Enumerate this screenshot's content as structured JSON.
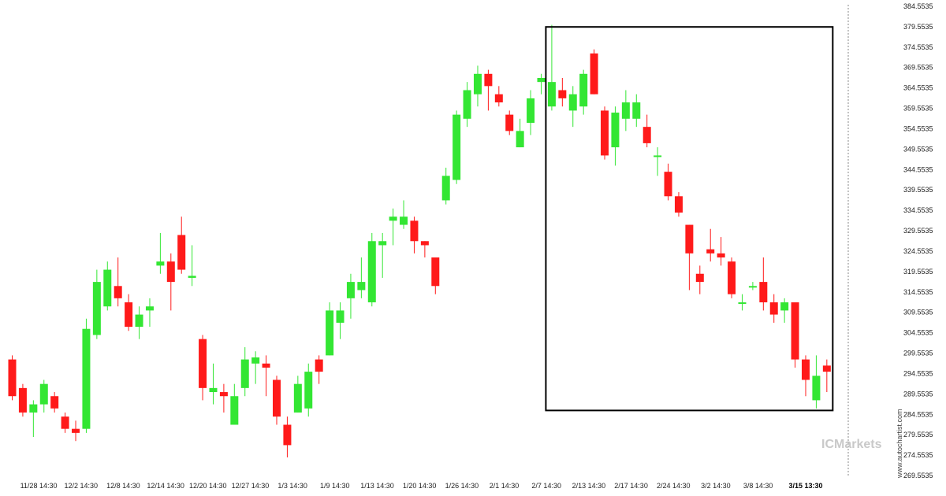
{
  "chart_data": {
    "type": "candlestick",
    "y_range": [
      269.5535,
      384.5535
    ],
    "y_ticks": [
      "384.5535",
      "379.5535",
      "374.5535",
      "369.5535",
      "364.5535",
      "359.5535",
      "354.5535",
      "349.5535",
      "344.5535",
      "339.5535",
      "334.5535",
      "329.5535",
      "324.5535",
      "319.5535",
      "314.5535",
      "309.5535",
      "304.5535",
      "299.5535",
      "294.5535",
      "289.5535",
      "284.5535",
      "279.5535",
      "274.5535",
      "269.5535"
    ],
    "x_ticks": [
      {
        "label": "11/28 14:30",
        "index": 2.5
      },
      {
        "label": "12/2 14:30",
        "index": 6.5
      },
      {
        "label": "12/8 14:30",
        "index": 10.5
      },
      {
        "label": "12/14 14:30",
        "index": 14.5
      },
      {
        "label": "12/20 14:30",
        "index": 18.5
      },
      {
        "label": "12/27 14:30",
        "index": 22.5
      },
      {
        "label": "1/3 14:30",
        "index": 26.5
      },
      {
        "label": "1/9 14:30",
        "index": 30.5
      },
      {
        "label": "1/13 14:30",
        "index": 34.5
      },
      {
        "label": "1/20 14:30",
        "index": 38.5
      },
      {
        "label": "1/26 14:30",
        "index": 42.5
      },
      {
        "label": "2/1 14:30",
        "index": 46.5
      },
      {
        "label": "2/7 14:30",
        "index": 50.5
      },
      {
        "label": "2/13 14:30",
        "index": 54.5
      },
      {
        "label": "2/17 14:30",
        "index": 58.5
      },
      {
        "label": "2/24 14:30",
        "index": 62.5
      },
      {
        "label": "3/2 14:30",
        "index": 66.5
      },
      {
        "label": "3/8 14:30",
        "index": 70.5
      },
      {
        "label": "3/15 13:30",
        "index": 75,
        "bold": true
      }
    ],
    "candles": [
      [
        298,
        289,
        299,
        288
      ],
      [
        291,
        285,
        292,
        284
      ],
      [
        285,
        287,
        288,
        279
      ],
      [
        287,
        292,
        293,
        285
      ],
      [
        289,
        286,
        290,
        285
      ],
      [
        284,
        281,
        285,
        280
      ],
      [
        281,
        280,
        283,
        278
      ],
      [
        281,
        305.5,
        308,
        280
      ],
      [
        304,
        317,
        320,
        303
      ],
      [
        311,
        320,
        322,
        310
      ],
      [
        316,
        313,
        323,
        311
      ],
      [
        312,
        306,
        314,
        305
      ],
      [
        306,
        309,
        311,
        303
      ],
      [
        310,
        311,
        313,
        306
      ],
      [
        321,
        322,
        329,
        319
      ],
      [
        322,
        317,
        324,
        310
      ],
      [
        328.5,
        320,
        333,
        319
      ],
      [
        318,
        318.5,
        326,
        316
      ],
      [
        303,
        291,
        304,
        288
      ],
      [
        290,
        291,
        297,
        287
      ],
      [
        290,
        289,
        292,
        285
      ],
      [
        282,
        289,
        292,
        282
      ],
      [
        291,
        298,
        301,
        289
      ],
      [
        297,
        298.5,
        300,
        292
      ],
      [
        297,
        296,
        299,
        289
      ],
      [
        293,
        284,
        294,
        282
      ],
      [
        282,
        277,
        284,
        274
      ],
      [
        285,
        292,
        294,
        285
      ],
      [
        286,
        295,
        297,
        284
      ],
      [
        298,
        295,
        299,
        292
      ],
      [
        299,
        310,
        312,
        299
      ],
      [
        307,
        310,
        312,
        303
      ],
      [
        313,
        317,
        319,
        308
      ],
      [
        315,
        317,
        323,
        313
      ],
      [
        312,
        327,
        329,
        311
      ],
      [
        326,
        327,
        329,
        318
      ],
      [
        332,
        333,
        335,
        326
      ],
      [
        331,
        333,
        337,
        330
      ],
      [
        332,
        327,
        333,
        324
      ],
      [
        327,
        326,
        327,
        323
      ],
      [
        323,
        316,
        323,
        314
      ],
      [
        337,
        343,
        345,
        336
      ],
      [
        342,
        358,
        359,
        341
      ],
      [
        357,
        364,
        366,
        355
      ],
      [
        363,
        368,
        370,
        360
      ],
      [
        368,
        365,
        369,
        359
      ],
      [
        363,
        361,
        365,
        360
      ],
      [
        358,
        354,
        359,
        353
      ],
      [
        350,
        354,
        357,
        350
      ],
      [
        356,
        362,
        364,
        353
      ],
      [
        366,
        367,
        368,
        363
      ],
      [
        360,
        366,
        380,
        359
      ],
      [
        364,
        362,
        367,
        360
      ],
      [
        359,
        363,
        365,
        355
      ],
      [
        360,
        368,
        369,
        358
      ],
      [
        373,
        363,
        374,
        363
      ],
      [
        359,
        348,
        360,
        347
      ],
      [
        350,
        358.5,
        360,
        345.5
      ],
      [
        357,
        361,
        364,
        354
      ],
      [
        357,
        361,
        363,
        355
      ],
      [
        355,
        351,
        358,
        350
      ],
      [
        348,
        348,
        350,
        343
      ],
      [
        344,
        338,
        346,
        337
      ],
      [
        338,
        334,
        339,
        333
      ],
      [
        331,
        324,
        331,
        315
      ],
      [
        319,
        317,
        321,
        314
      ],
      [
        325,
        324,
        330,
        322
      ],
      [
        324,
        323,
        328,
        321
      ],
      [
        322,
        314,
        323,
        313
      ],
      [
        312,
        312,
        314,
        310
      ],
      [
        316,
        316,
        317,
        315
      ],
      [
        317,
        312,
        323,
        310
      ],
      [
        312,
        309,
        314,
        307
      ],
      [
        310,
        312,
        313,
        307
      ],
      [
        312,
        298,
        312,
        296
      ],
      [
        298,
        293,
        299,
        289
      ],
      [
        288,
        294,
        299,
        286
      ],
      [
        296.5,
        295,
        298,
        290
      ]
    ],
    "annotation_box": {
      "start_index": 51,
      "end_index": 77,
      "top": 379.5,
      "bottom": 285.5
    },
    "bull_color": "#33e633",
    "bear_color": "#ff1a1a"
  },
  "watermark": {
    "brand": "ICMarkets",
    "site": "www.autochartist.com"
  }
}
